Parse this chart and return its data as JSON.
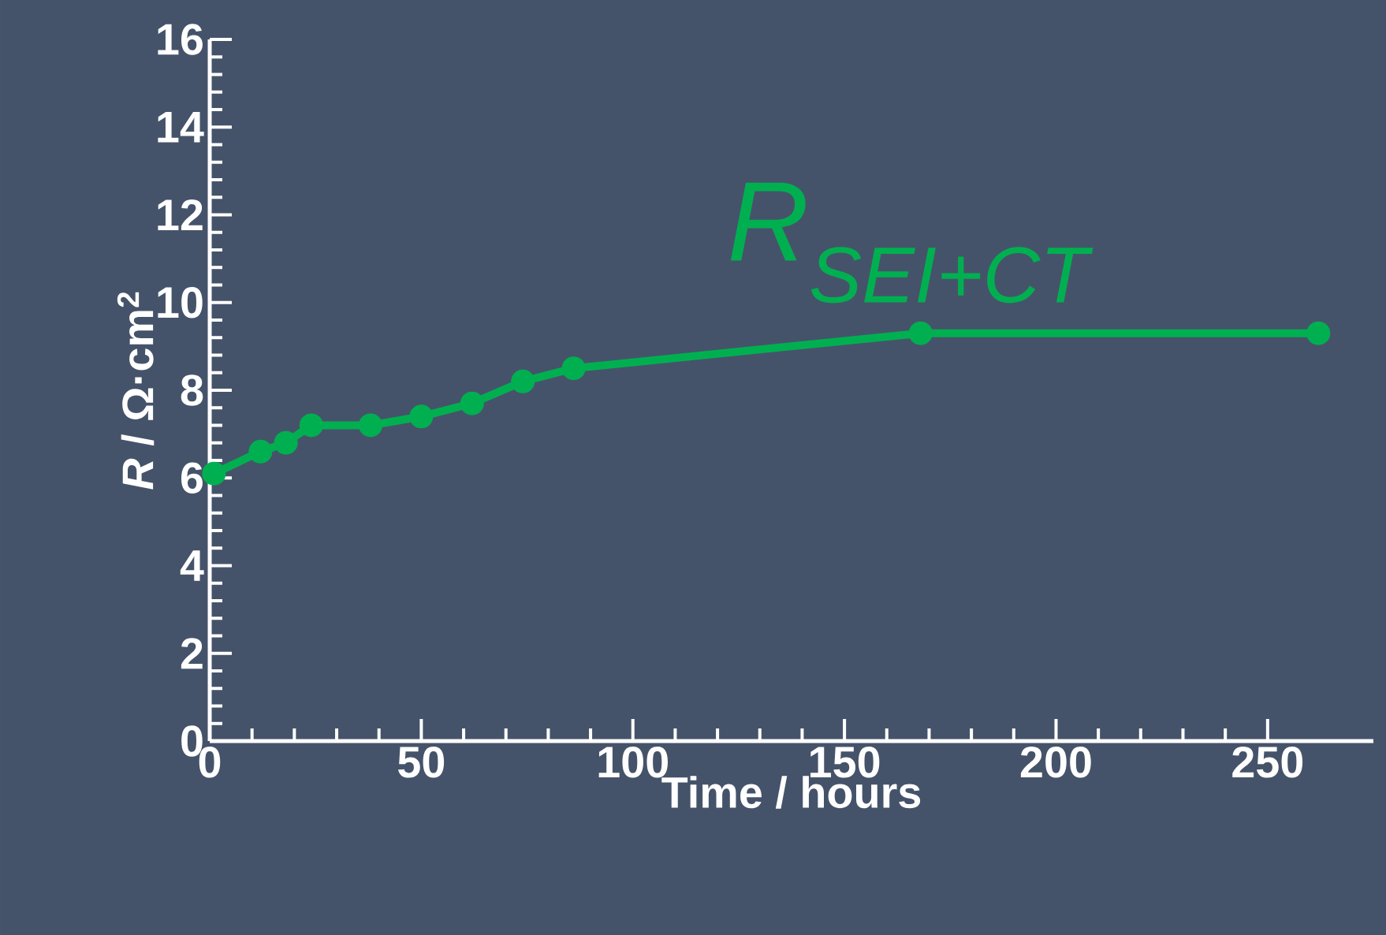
{
  "chart_data": {
    "type": "line",
    "xlabel": "Time / hours",
    "ylabel": "*R* / Ω·cm$^{2}$",
    "x": [
      1,
      12,
      18,
      24,
      38,
      50,
      62,
      74,
      86,
      168,
      262
    ],
    "series": [
      {
        "name": "R$_{SEI+CT}$",
        "color": "#00b050",
        "values": [
          6.1,
          6.6,
          6.8,
          7.2,
          7.2,
          7.4,
          7.7,
          8.2,
          8.5,
          9.3,
          9.3
        ]
      }
    ],
    "xlim": [
      0,
      275
    ],
    "xticks": [
      0,
      50,
      100,
      150,
      200,
      250
    ],
    "ylim": [
      0,
      16
    ],
    "yticks": [
      0,
      2,
      4,
      6,
      8,
      10,
      12,
      14,
      16
    ],
    "marker": "circle",
    "line_style": "solid"
  }
}
